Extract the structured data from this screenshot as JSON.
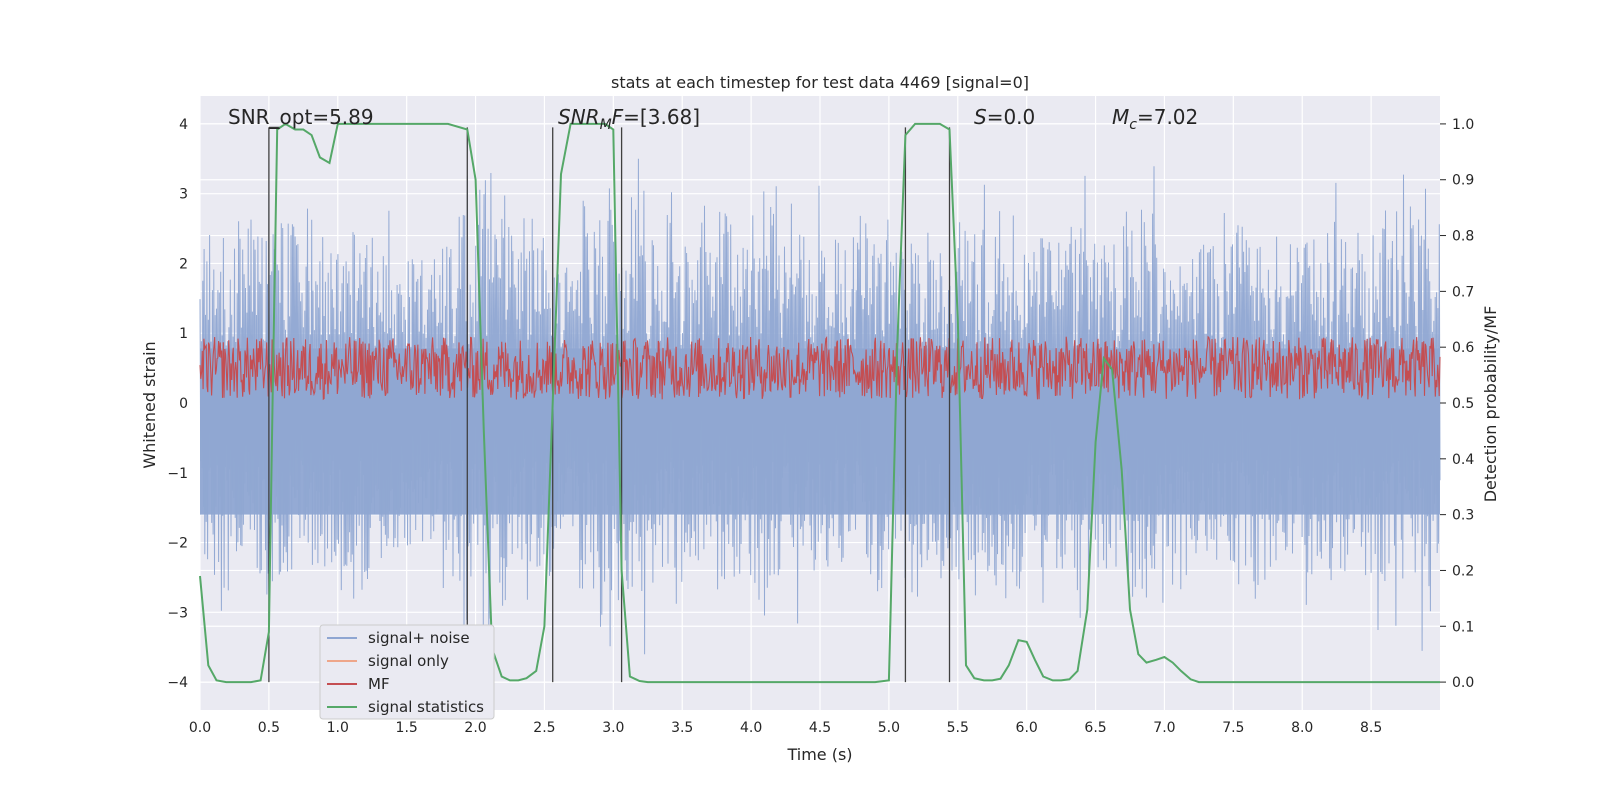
{
  "chart_data": {
    "type": "line",
    "title": "stats at each timestep for test data 4469 [signal=0]",
    "xlabel": "Time (s)",
    "ylabel": "Whitened strain",
    "y2label": "Detection probability/MF",
    "xlim": [
      0,
      9.0
    ],
    "ylim": [
      -4.4,
      4.4
    ],
    "y2lim": [
      -0.05,
      1.05
    ],
    "x_ticks": [
      "0.0",
      "0.5",
      "1.0",
      "1.5",
      "2.0",
      "2.5",
      "3.0",
      "3.5",
      "4.0",
      "4.5",
      "5.0",
      "5.5",
      "6.0",
      "6.5",
      "7.0",
      "7.5",
      "8.0",
      "8.5"
    ],
    "y_ticks": [
      "4",
      "3",
      "2",
      "1",
      "0",
      "−1",
      "−2",
      "−3",
      "−4"
    ],
    "y2_ticks": [
      "1.0",
      "0.9",
      "0.8",
      "0.7",
      "0.6",
      "0.5",
      "0.4",
      "0.3",
      "0.2",
      "0.1",
      "0.0"
    ],
    "grid": true,
    "legend_position": "lower-left",
    "annotations": {
      "snr_opt": "SNR_opt=5.89",
      "snr_mf": "=[3.68]",
      "snr_mf_sym": "SNR",
      "snr_mf_sub": "M",
      "snr_mf_sym2": "F",
      "s": "=0.0",
      "s_sym": "S",
      "mc": "=7.02",
      "mc_sym": "M",
      "mc_sub": "c"
    },
    "series": [
      {
        "name": "signal+ noise",
        "color": "#8fa6d2",
        "description_range": [
          -2.5,
          3.3
        ],
        "envelope_pos": [
          2.3,
          2.5,
          2.6,
          2.4,
          2.8,
          2.2,
          2.1,
          2.7,
          3.3,
          2.4,
          2.0,
          2.9,
          3.1,
          2.6,
          2.3,
          2.8,
          3.2,
          2.5,
          2.4,
          2.7,
          2.3,
          2.5,
          2.6,
          2.8,
          2.4,
          2.6,
          2.4,
          2.8,
          2.2,
          2.3,
          2.6,
          2.4,
          2.7,
          2.5,
          2.6,
          2.9
        ]
      },
      {
        "name": "signal only",
        "color": "#eea68a"
      },
      {
        "name": "MF",
        "color": "#c44e52",
        "band": [
          0.05,
          0.95
        ]
      },
      {
        "name": "signal statistics",
        "color": "#55a868",
        "x": [
          0.0,
          0.06,
          0.12,
          0.19,
          0.25,
          0.31,
          0.37,
          0.44,
          0.5,
          0.53,
          0.56,
          0.62,
          0.69,
          0.75,
          0.81,
          0.87,
          0.94,
          1.0,
          1.06,
          1.12,
          1.5,
          1.8,
          1.94,
          2.0,
          2.06,
          2.12,
          2.19,
          2.25,
          2.31,
          2.37,
          2.44,
          2.5,
          2.56,
          2.62,
          2.69,
          2.75,
          2.81,
          2.87,
          2.94,
          3.0,
          3.06,
          3.12,
          3.19,
          3.25,
          3.5,
          4.0,
          4.5,
          4.9,
          5.0,
          5.06,
          5.12,
          5.19,
          5.25,
          5.31,
          5.37,
          5.44,
          5.5,
          5.56,
          5.62,
          5.69,
          5.75,
          5.81,
          5.87,
          5.94,
          6.0,
          6.06,
          6.12,
          6.19,
          6.25,
          6.31,
          6.37,
          6.44,
          6.5,
          6.56,
          6.62,
          6.69,
          6.75,
          6.81,
          6.87,
          6.94,
          7.0,
          7.06,
          7.12,
          7.19,
          7.25,
          7.5,
          8.0,
          8.5,
          9.0
        ],
        "y": [
          0.19,
          0.03,
          0.003,
          0.0,
          0.0,
          0.0,
          0.0,
          0.003,
          0.09,
          0.55,
          0.99,
          1.0,
          0.99,
          0.99,
          0.98,
          0.94,
          0.93,
          1.0,
          1.0,
          1.0,
          1.0,
          1.0,
          0.99,
          0.9,
          0.45,
          0.06,
          0.01,
          0.003,
          0.003,
          0.007,
          0.02,
          0.1,
          0.5,
          0.91,
          1.0,
          1.0,
          1.0,
          1.0,
          1.0,
          0.99,
          0.2,
          0.01,
          0.002,
          0.0,
          0.0,
          0.0,
          0.0,
          0.0,
          0.003,
          0.6,
          0.98,
          1.0,
          1.0,
          1.0,
          1.0,
          0.99,
          0.65,
          0.03,
          0.007,
          0.003,
          0.003,
          0.006,
          0.03,
          0.075,
          0.072,
          0.04,
          0.01,
          0.003,
          0.003,
          0.005,
          0.02,
          0.13,
          0.43,
          0.58,
          0.56,
          0.38,
          0.13,
          0.05,
          0.035,
          0.04,
          0.045,
          0.035,
          0.02,
          0.005,
          0.0,
          0.0,
          0.0,
          0.0,
          0.0
        ]
      }
    ],
    "vertical_lines": [
      0.5,
      1.94,
      2.56,
      3.06,
      5.12,
      5.44
    ]
  }
}
